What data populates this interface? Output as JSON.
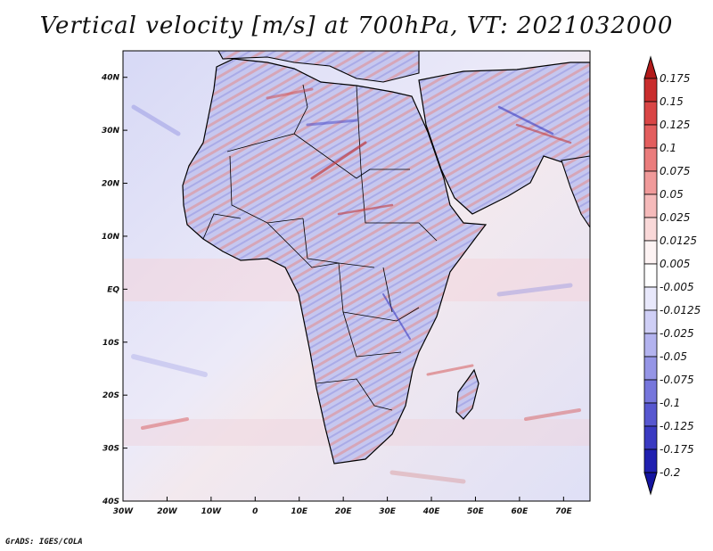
{
  "title": "Vertical velocity [m/s] at 700hPa, VT: 2021032000",
  "credit": "GrADS: IGES/COLA",
  "map": {
    "region": "Africa",
    "lon_range": [
      -30,
      76
    ],
    "lat_range": [
      -40,
      45
    ],
    "lon_ticks": [
      "30W",
      "20W",
      "10W",
      "0",
      "10E",
      "20E",
      "30E",
      "40E",
      "50E",
      "60E",
      "70E"
    ],
    "lat_ticks": [
      "40N",
      "30N",
      "20N",
      "10N",
      "EQ",
      "10S",
      "20S",
      "30S",
      "40S"
    ]
  },
  "colorbar": {
    "labels": [
      "0.175",
      "0.15",
      "0.125",
      "0.1",
      "0.075",
      "0.05",
      "0.025",
      "0.0125",
      "0.005",
      "-0.005",
      "-0.0125",
      "-0.025",
      "-0.05",
      "-0.075",
      "-0.1",
      "-0.125",
      "-0.175",
      "-0.2"
    ],
    "colors": [
      "#b21a1a",
      "#c92d2d",
      "#d94545",
      "#e35e5e",
      "#ea7c7c",
      "#f09a9a",
      "#f5baba",
      "#f9d8d8",
      "#fdf3f3",
      "#ffffff",
      "#e8e8fb",
      "#cfcff6",
      "#b3b3ef",
      "#9595e6",
      "#7676dc",
      "#5757d0",
      "#3a3ac2",
      "#2020b0",
      "#1414a0"
    ]
  }
}
